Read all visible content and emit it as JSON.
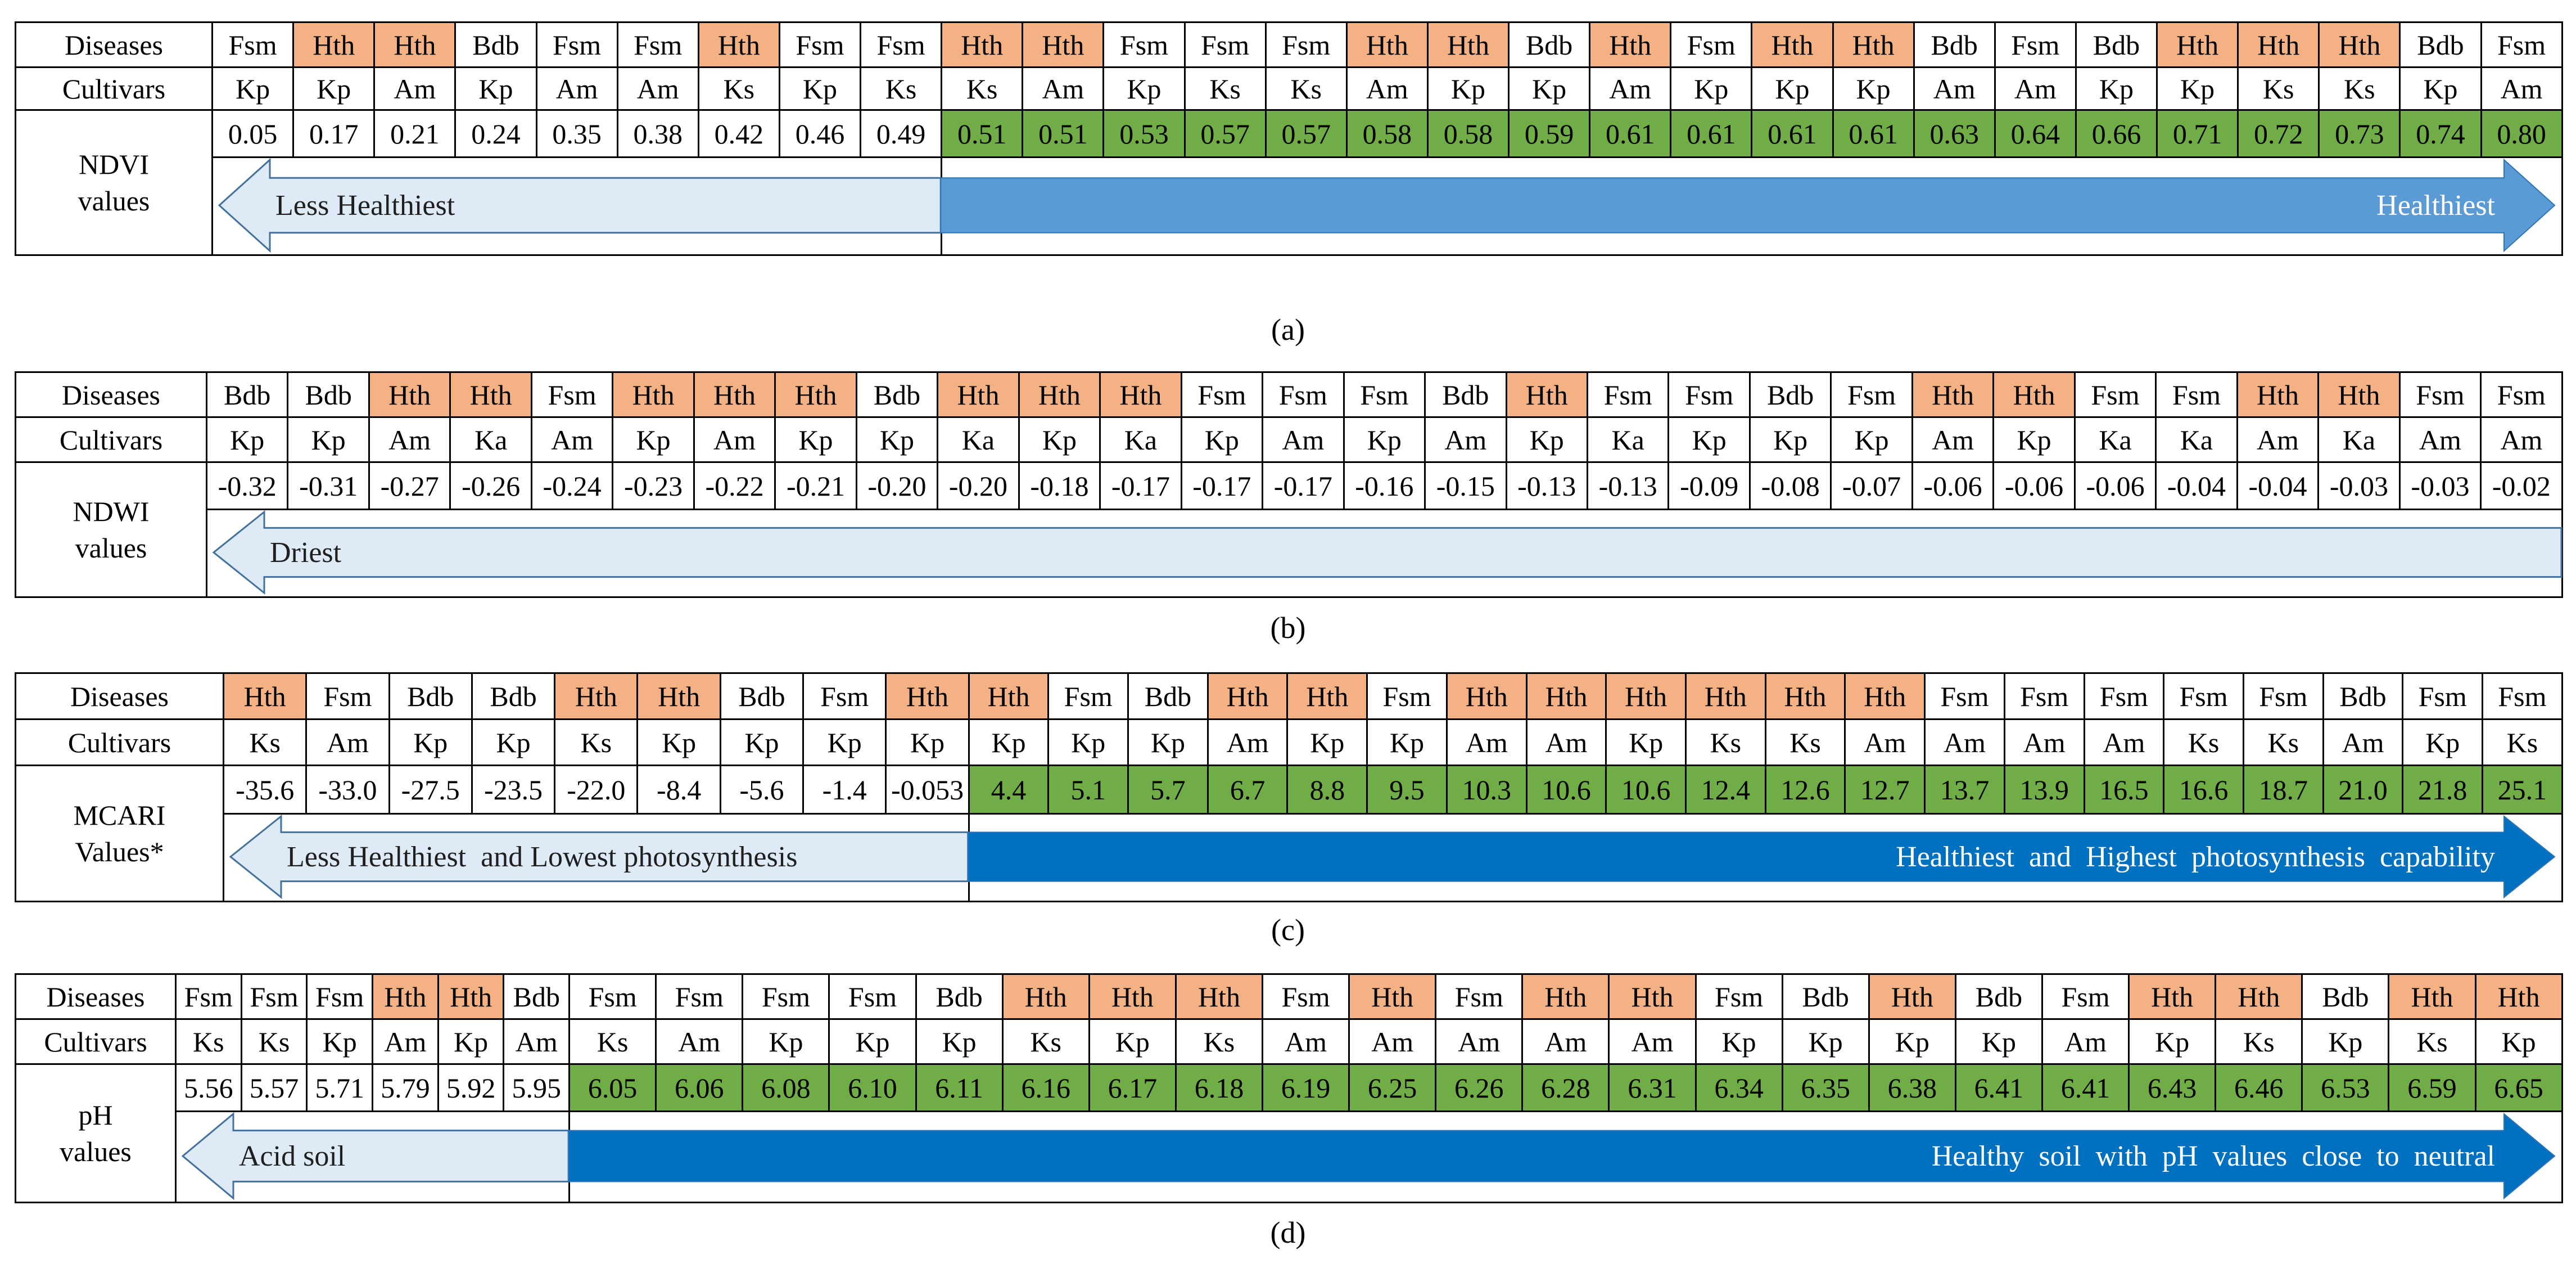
{
  "panels": [
    {
      "id": "a",
      "caption": "(a)",
      "diseases_label": "Diseases",
      "cultivars_label": "Cultivars",
      "value_label_lines": [
        "NDVI",
        "values"
      ],
      "diseases": [
        "Fsm",
        "Hth",
        "Hth",
        "Bdb",
        "Fsm",
        "Fsm",
        "Hth",
        "Fsm",
        "Fsm",
        "Hth",
        "Hth",
        "Fsm",
        "Fsm",
        "Fsm",
        "Hth",
        "Hth",
        "Bdb",
        "Hth",
        "Fsm",
        "Hth",
        "Hth",
        "Bdb",
        "Fsm",
        "Bdb",
        "Hth",
        "Hth",
        "Hth",
        "Bdb",
        "Fsm"
      ],
      "cultivars": [
        "Kp",
        "Kp",
        "Am",
        "Kp",
        "Am",
        "Am",
        "Ks",
        "Kp",
        "Ks",
        "Ks",
        "Am",
        "Kp",
        "Ks",
        "Ks",
        "Am",
        "Kp",
        "Kp",
        "Am",
        "Kp",
        "Kp",
        "Kp",
        "Am",
        "Am",
        "Kp",
        "Kp",
        "Ks",
        "Ks",
        "Kp",
        "Am"
      ],
      "values": [
        "0.05",
        "0.17",
        "0.21",
        "0.24",
        "0.35",
        "0.38",
        "0.42",
        "0.46",
        "0.49",
        "0.51",
        "0.51",
        "0.53",
        "0.57",
        "0.57",
        "0.58",
        "0.58",
        "0.59",
        "0.61",
        "0.61",
        "0.61",
        "0.61",
        "0.63",
        "0.64",
        "0.66",
        "0.71",
        "0.72",
        "0.73",
        "0.74",
        "0.80"
      ],
      "green_from": 9,
      "left_arrow_label": "Less Healthiest",
      "right_arrow_label": "Healthiest"
    },
    {
      "id": "b",
      "caption": "(b)",
      "diseases_label": "Diseases",
      "cultivars_label": "Cultivars",
      "value_label_lines": [
        "NDWI",
        "values"
      ],
      "diseases": [
        "Bdb",
        "Bdb",
        "Hth",
        "Hth",
        "Fsm",
        "Hth",
        "Hth",
        "Hth",
        "Bdb",
        "Hth",
        "Hth",
        "Hth",
        "Fsm",
        "Fsm",
        "Fsm",
        "Bdb",
        "Hth",
        "Fsm",
        "Fsm",
        "Bdb",
        "Fsm",
        "Hth",
        "Hth",
        "Fsm",
        "Fsm",
        "Hth",
        "Hth",
        "Fsm",
        "Fsm"
      ],
      "cultivars": [
        "Kp",
        "Kp",
        "Am",
        "Ka",
        "Am",
        "Kp",
        "Am",
        "Kp",
        "Kp",
        "Ka",
        "Kp",
        "Ka",
        "Kp",
        "Am",
        "Kp",
        "Am",
        "Kp",
        "Ka",
        "Kp",
        "Kp",
        "Kp",
        "Am",
        "Kp",
        "Ka",
        "Ka",
        "Am",
        "Ka",
        "Am",
        "Am"
      ],
      "values": [
        "-0.32",
        "-0.31",
        "-0.27",
        "-0.26",
        "-0.24",
        "-0.23",
        "-0.22",
        "-0.21",
        "-0.20",
        "-0.20",
        "-0.18",
        "-0.17",
        "-0.17",
        "-0.17",
        "-0.16",
        "-0.15",
        "-0.13",
        "-0.13",
        "-0.09",
        "-0.08",
        "-0.07",
        "-0.06",
        "-0.06",
        "-0.06",
        "-0.04",
        "-0.04",
        "-0.03",
        "-0.03",
        "-0.02"
      ],
      "green_from": -1,
      "left_arrow_label": "Driest",
      "right_arrow_label": ""
    },
    {
      "id": "c",
      "caption": "(c)",
      "diseases_label": "Diseases",
      "cultivars_label": "Cultivars",
      "value_label_lines": [
        "MCARI",
        "Values*"
      ],
      "diseases": [
        "Hth",
        "Fsm",
        "Bdb",
        "Bdb",
        "Hth",
        "Hth",
        "Bdb",
        "Fsm",
        "Hth",
        "Hth",
        "Fsm",
        "Bdb",
        "Hth",
        "Hth",
        "Fsm",
        "Hth",
        "Hth",
        "Hth",
        "Hth",
        "Hth",
        "Hth",
        "Fsm",
        "Fsm",
        "Fsm",
        "Fsm",
        "Fsm",
        "Bdb",
        "Fsm",
        "Fsm"
      ],
      "cultivars": [
        "Ks",
        "Am",
        "Kp",
        "Kp",
        "Ks",
        "Kp",
        "Kp",
        "Kp",
        "Kp",
        "Kp",
        "Kp",
        "Kp",
        "Am",
        "Kp",
        "Kp",
        "Am",
        "Am",
        "Kp",
        "Ks",
        "Ks",
        "Am",
        "Am",
        "Am",
        "Am",
        "Ks",
        "Ks",
        "Am",
        "Kp",
        "Ks"
      ],
      "values": [
        "-35.6",
        "-33.0",
        "-27.5",
        "-23.5",
        "-22.0",
        "-8.4",
        "-5.6",
        "-1.4",
        "-0.053",
        "4.4",
        "5.1",
        "5.7",
        "6.7",
        "8.8",
        "9.5",
        "10.3",
        "10.6",
        "10.6",
        "12.4",
        "12.6",
        "12.7",
        "13.7",
        "13.9",
        "16.5",
        "16.6",
        "18.7",
        "21.0",
        "21.8",
        "25.1"
      ],
      "green_from": 9,
      "left_arrow_label": "Less Healthiest  and Lowest photosynthesis",
      "right_arrow_label": "Healthiest  and  Highest  photosynthesis  capability"
    },
    {
      "id": "d",
      "caption": "(d)",
      "diseases_label": "Diseases",
      "cultivars_label": "Cultivars",
      "value_label_lines": [
        "pH",
        "values"
      ],
      "diseases": [
        "Fsm",
        "Fsm",
        "Fsm",
        "Hth",
        "Hth",
        "Bdb",
        "Fsm",
        "Fsm",
        "Fsm",
        "Fsm",
        "Bdb",
        "Hth",
        "Hth",
        "Hth",
        "Fsm",
        "Hth",
        "Fsm",
        "Hth",
        "Hth",
        "Fsm",
        "Bdb",
        "Hth",
        "Bdb",
        "Fsm",
        "Hth",
        "Hth",
        "Bdb",
        "Hth",
        "Hth"
      ],
      "cultivars": [
        "Ks",
        "Ks",
        "Kp",
        "Am",
        "Kp",
        "Am",
        "Ks",
        "Am",
        "Kp",
        "Kp",
        "Kp",
        "Ks",
        "Kp",
        "Ks",
        "Am",
        "Am",
        "Am",
        "Am",
        "Am",
        "Kp",
        "Kp",
        "Kp",
        "Kp",
        "Am",
        "Kp",
        "Ks",
        "Kp",
        "Ks",
        "Kp"
      ],
      "values": [
        "5.56",
        "5.57",
        "5.71",
        "5.79",
        "5.92",
        "5.95",
        "6.05",
        "6.06",
        "6.08",
        "6.10",
        "6.11",
        "6.16",
        "6.17",
        "6.18",
        "6.19",
        "6.25",
        "6.26",
        "6.28",
        "6.31",
        "6.34",
        "6.35",
        "6.38",
        "6.41",
        "6.41",
        "6.43",
        "6.46",
        "6.53",
        "6.59",
        "6.65"
      ],
      "green_from": 6,
      "left_arrow_label": "Acid soil",
      "right_arrow_label": "Healthy  soil  with  pH  values  close  to  neutral"
    }
  ],
  "colors": {
    "healthy_disease": "#F4B183",
    "green_value": "#70AD47",
    "left_arrow_fill": "#DEEBF7",
    "left_arrow_stroke": "#41719C",
    "right_arrow_fill": "#5B9BD5",
    "right_arrow_fill_dark": "#0070C0"
  }
}
